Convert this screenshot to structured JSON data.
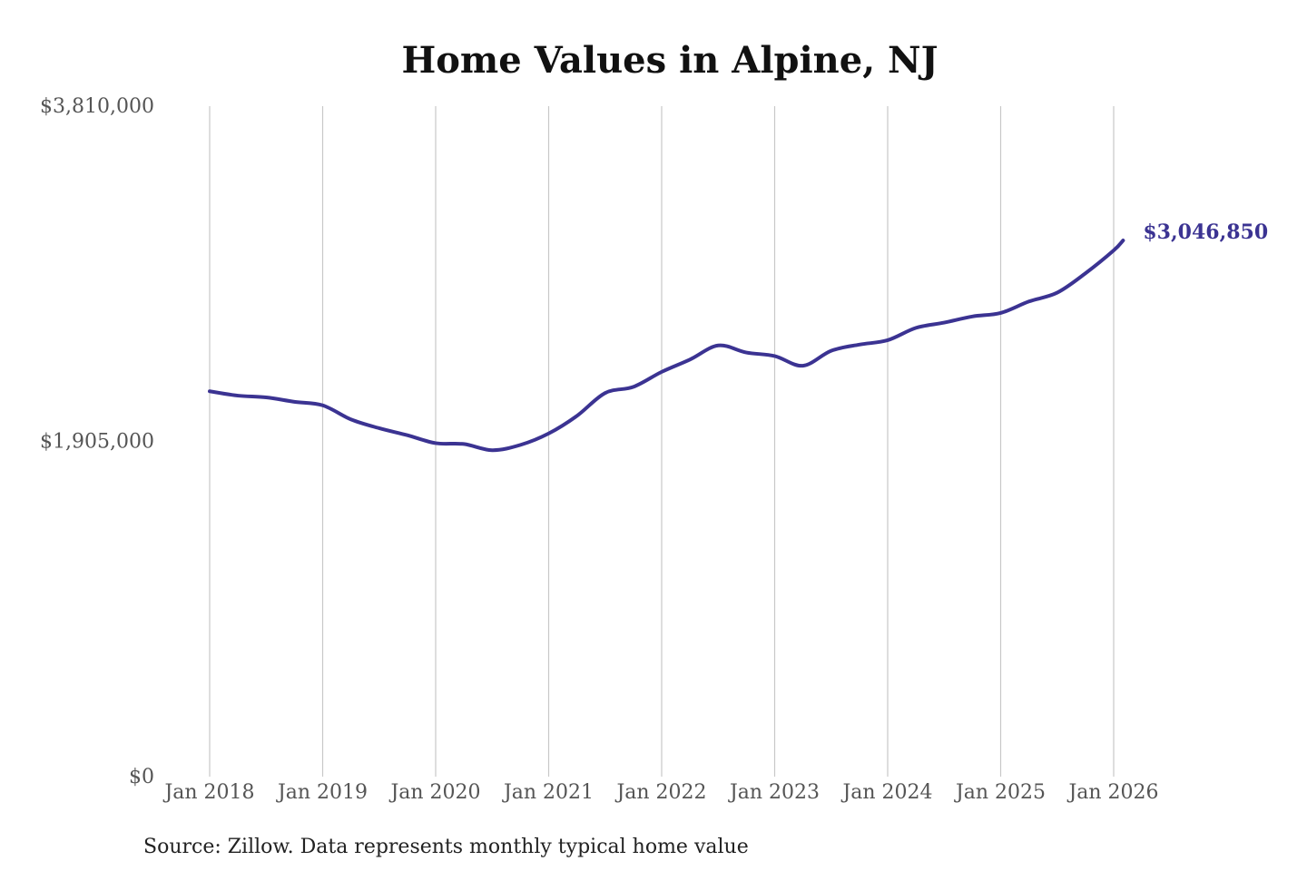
{
  "chart_data": {
    "type": "line",
    "title": "Home Values in Alpine, NJ",
    "source_note": "Source: Zillow. Data represents monthly typical home value",
    "x_tick_labels": [
      "Jan 2018",
      "Jan 2019",
      "Jan 2020",
      "Jan 2021",
      "Jan 2022",
      "Jan 2023",
      "Jan 2024",
      "Jan 2025",
      "Jan 2026"
    ],
    "y_tick_labels": [
      "$0",
      "$1,905,000",
      "$3,810,000"
    ],
    "ylim": [
      0,
      3810000
    ],
    "grid": "vertical",
    "line_color": "#3b3392",
    "end_label": "$3,046,850",
    "series": [
      {
        "x": [
          "2018-01",
          "2018-04",
          "2018-07",
          "2018-10",
          "2019-01",
          "2019-04",
          "2019-07",
          "2019-10",
          "2020-01",
          "2020-04",
          "2020-07",
          "2020-10",
          "2021-01",
          "2021-04",
          "2021-07",
          "2021-10",
          "2022-01",
          "2022-04",
          "2022-07",
          "2022-10",
          "2023-01",
          "2023-04",
          "2023-07",
          "2023-10",
          "2024-01",
          "2024-04",
          "2024-07",
          "2024-10",
          "2025-01",
          "2025-04",
          "2025-07",
          "2025-10",
          "2026-01",
          "2026-02"
        ],
        "values": [
          2190000,
          2165000,
          2155000,
          2130000,
          2110000,
          2030000,
          1980000,
          1940000,
          1895000,
          1890000,
          1855000,
          1885000,
          1950000,
          2050000,
          2180000,
          2215000,
          2300000,
          2370000,
          2450000,
          2410000,
          2390000,
          2335000,
          2420000,
          2455000,
          2480000,
          2550000,
          2580000,
          2615000,
          2635000,
          2700000,
          2750000,
          2860000,
          2990000,
          3046850
        ]
      }
    ]
  }
}
